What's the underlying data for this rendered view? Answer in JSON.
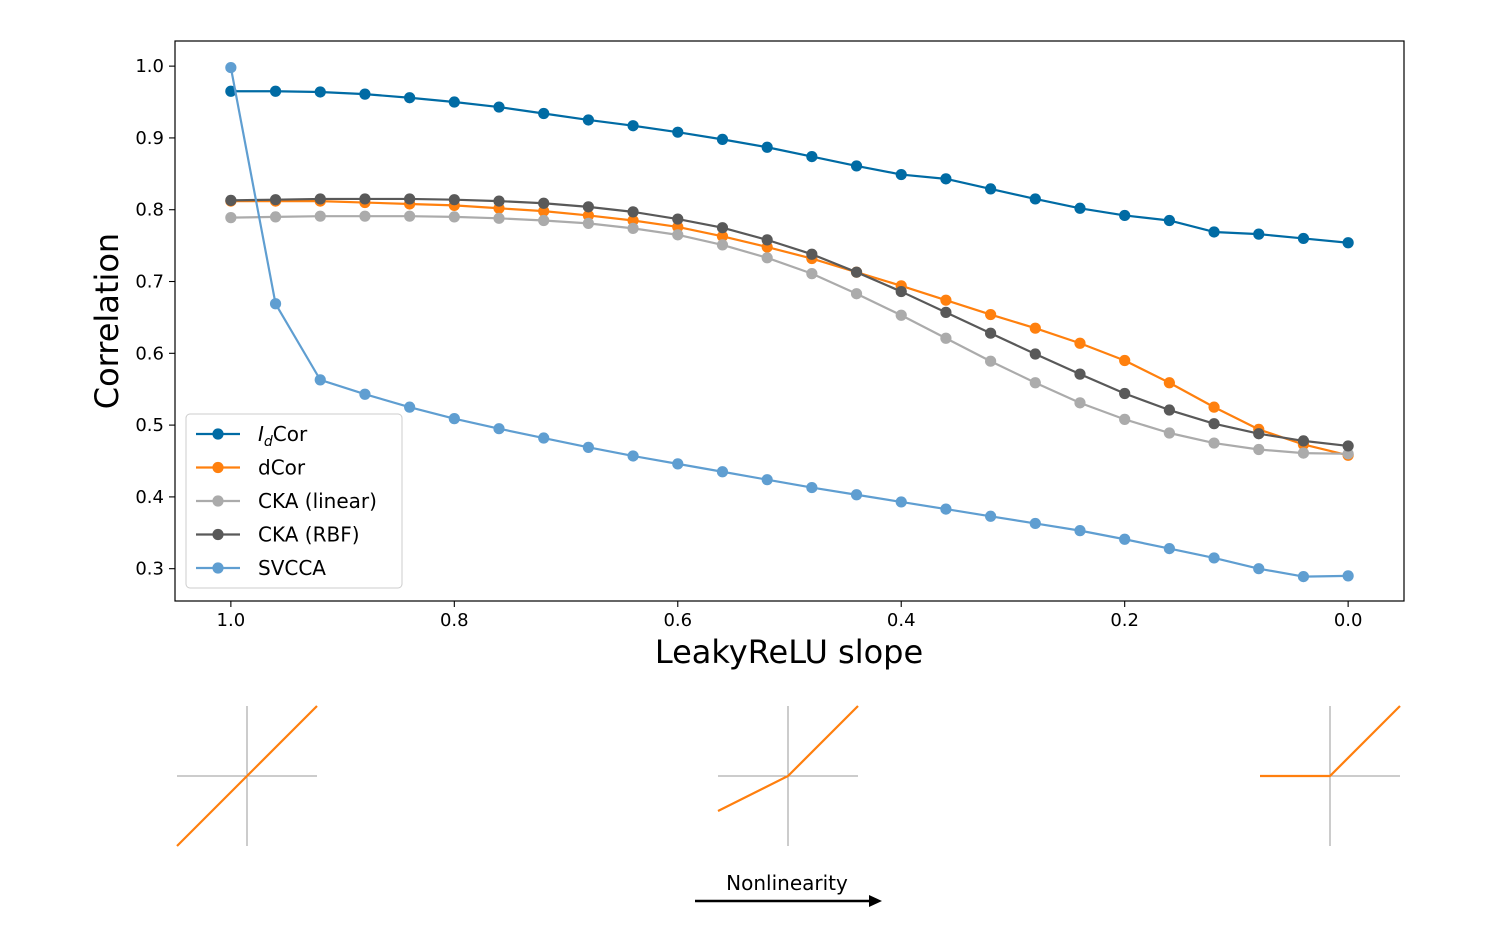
{
  "chart_data": {
    "type": "line",
    "xlabel": "LeakyReLU slope",
    "ylabel": "Correlation",
    "xlim": [
      1.05,
      -0.05
    ],
    "ylim": [
      0.255,
      1.035
    ],
    "x_ticks": [
      1.0,
      0.8,
      0.6,
      0.4,
      0.2,
      0.0
    ],
    "x_tick_labels": [
      "1.0",
      "0.8",
      "0.6",
      "0.4",
      "0.2",
      "0.0"
    ],
    "y_ticks": [
      0.3,
      0.4,
      0.5,
      0.6,
      0.7,
      0.8,
      0.9,
      1.0
    ],
    "y_tick_labels": [
      "0.3",
      "0.4",
      "0.5",
      "0.6",
      "0.7",
      "0.8",
      "0.9",
      "1.0"
    ],
    "legend_position": "lower-left",
    "x": [
      1.0,
      0.96,
      0.92,
      0.88,
      0.84,
      0.8,
      0.76,
      0.72,
      0.68,
      0.64,
      0.6,
      0.56,
      0.52,
      0.48,
      0.44,
      0.4,
      0.36,
      0.32,
      0.28,
      0.24,
      0.2,
      0.16,
      0.12,
      0.08,
      0.04,
      0.0
    ],
    "series": [
      {
        "name": "IdCor",
        "label_main": "I",
        "label_sub": "d",
        "label_rest": "Cor",
        "color": "#006ba4",
        "values": [
          0.965,
          0.965,
          0.964,
          0.961,
          0.956,
          0.95,
          0.943,
          0.934,
          0.925,
          0.917,
          0.908,
          0.898,
          0.887,
          0.874,
          0.861,
          0.849,
          0.843,
          0.829,
          0.815,
          0.802,
          0.792,
          0.785,
          0.769,
          0.766,
          0.76,
          0.754
        ]
      },
      {
        "name": "dCor",
        "color": "#ff800e",
        "values": [
          0.812,
          0.812,
          0.812,
          0.81,
          0.808,
          0.806,
          0.802,
          0.798,
          0.792,
          0.785,
          0.776,
          0.763,
          0.748,
          0.732,
          0.713,
          0.694,
          0.674,
          0.654,
          0.635,
          0.614,
          0.59,
          0.559,
          0.525,
          0.494,
          0.473,
          0.458
        ]
      },
      {
        "name": "CKA (linear)",
        "color": "#ababab",
        "values": [
          0.789,
          0.79,
          0.791,
          0.791,
          0.791,
          0.79,
          0.788,
          0.785,
          0.781,
          0.774,
          0.765,
          0.751,
          0.733,
          0.711,
          0.683,
          0.653,
          0.621,
          0.589,
          0.559,
          0.531,
          0.508,
          0.489,
          0.475,
          0.466,
          0.461,
          0.46
        ]
      },
      {
        "name": "CKA (RBF)",
        "color": "#595959",
        "values": [
          0.813,
          0.814,
          0.815,
          0.815,
          0.815,
          0.814,
          0.812,
          0.809,
          0.804,
          0.797,
          0.787,
          0.775,
          0.758,
          0.738,
          0.713,
          0.686,
          0.657,
          0.628,
          0.599,
          0.571,
          0.544,
          0.521,
          0.502,
          0.488,
          0.478,
          0.471
        ]
      },
      {
        "name": "SVCCA",
        "color": "#5f9ed1",
        "values": [
          0.998,
          0.669,
          0.563,
          0.543,
          0.525,
          0.509,
          0.495,
          0.482,
          0.469,
          0.457,
          0.446,
          0.435,
          0.424,
          0.413,
          0.403,
          0.393,
          0.383,
          0.373,
          0.363,
          0.353,
          0.341,
          0.328,
          0.315,
          0.3,
          0.289,
          0.29
        ]
      }
    ],
    "insets": [
      {
        "name": "linear",
        "negative_slope": 1.0
      },
      {
        "name": "leaky",
        "negative_slope": 0.5
      },
      {
        "name": "relu",
        "negative_slope": 0.0
      }
    ],
    "annotation": "Nonlinearity"
  },
  "colors": {
    "inset_line": "#ff7f0e",
    "inset_axis": "#9a9a9a"
  }
}
